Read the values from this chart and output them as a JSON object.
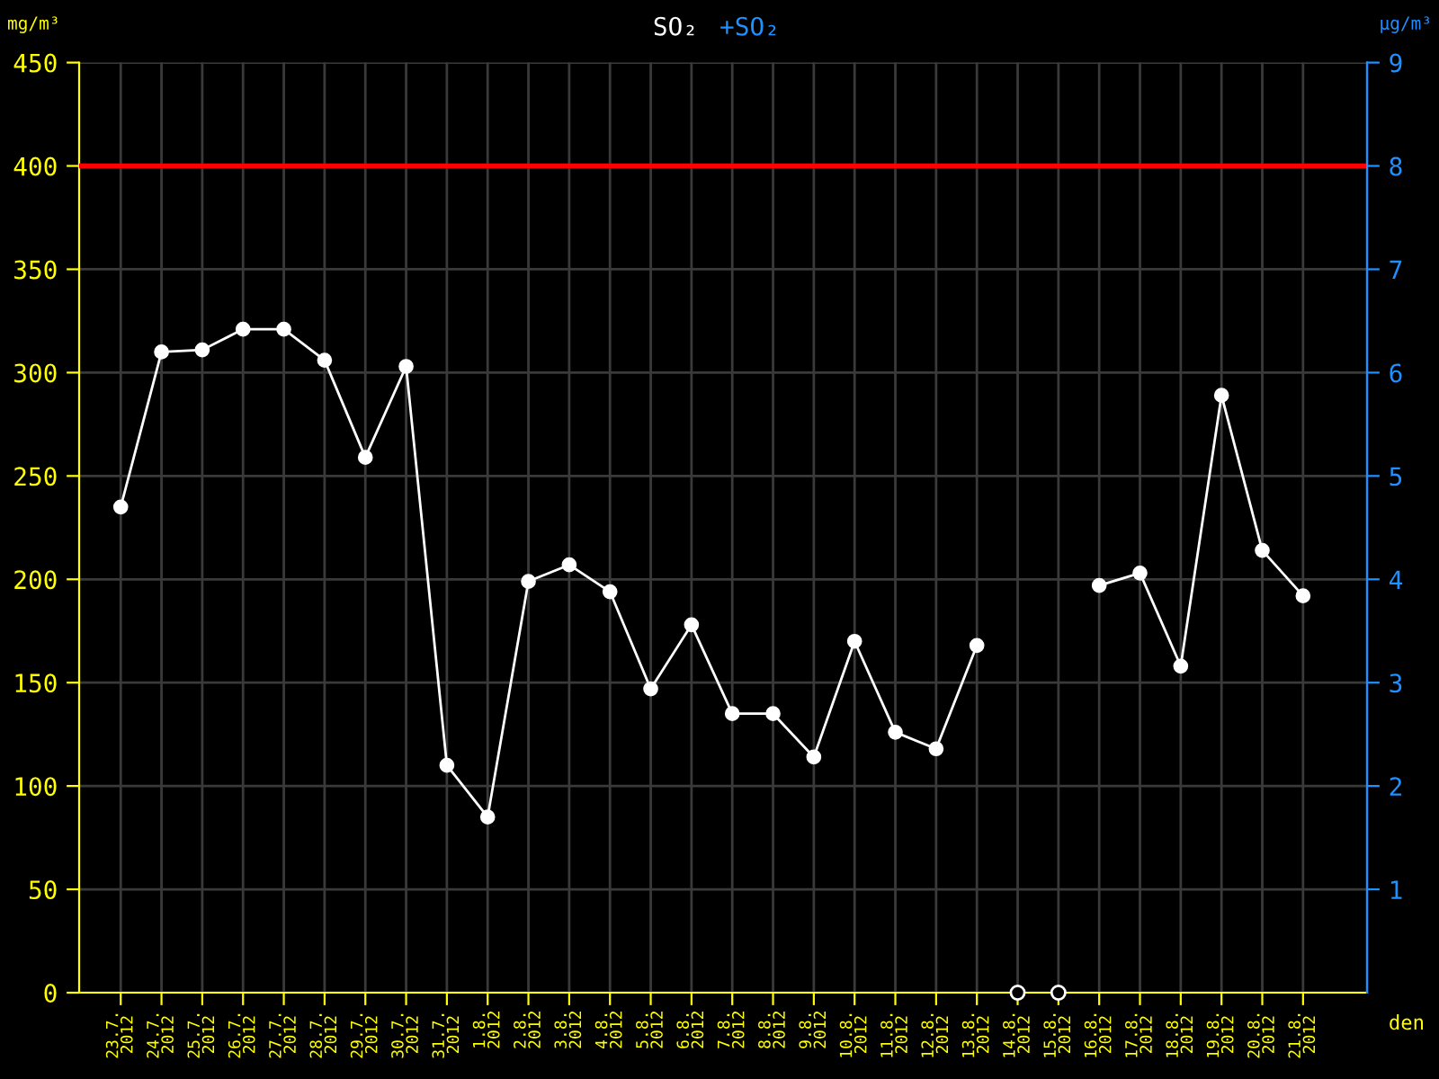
{
  "chart_data": {
    "type": "line",
    "title": "SO₂",
    "subtitle": "+SO₂",
    "ylabel": "mg/m³",
    "y2label": "µg/m³",
    "xlabel": "den",
    "categories": [
      "23.7.\n2012",
      "24.7.\n2012",
      "25.7.\n2012",
      "26.7.\n2012",
      "27.7.\n2012",
      "28.7.\n2012",
      "29.7.\n2012",
      "30.7.\n2012",
      "31.7.\n2012",
      "1.8.\n2012",
      "2.8.\n2012",
      "3.8.\n2012",
      "4.8.\n2012",
      "5.8.\n2012",
      "6.8.\n2012",
      "7.8.\n2012",
      "8.8.\n2012",
      "9.8.\n2012",
      "10.8.\n2012",
      "11.8.\n2012",
      "12.8.\n2012",
      "13.8.\n2012",
      "14.8.\n2012",
      "15.8.\n2012",
      "16.8.\n2012",
      "17.8.\n2012",
      "18.8.\n2012",
      "19.8.\n2012",
      "20.8.\n2012",
      "21.8.\n2012"
    ],
    "series": [
      {
        "color": "#ffffff",
        "marker": "circle",
        "values": [
          235,
          310,
          311,
          321,
          321,
          306,
          259,
          303,
          110,
          85,
          199,
          207,
          194,
          147,
          178,
          135,
          135,
          114,
          170,
          126,
          118,
          168,
          null,
          null,
          197,
          203,
          158,
          289,
          214,
          192
        ]
      },
      {
        "type": "scatter",
        "color": "#ffffff",
        "marker": "circle",
        "values": [
          null,
          null,
          null,
          null,
          null,
          null,
          null,
          null,
          null,
          null,
          null,
          null,
          null,
          null,
          null,
          null,
          null,
          null,
          null,
          null,
          null,
          null,
          0,
          0,
          null,
          null,
          null,
          null,
          null,
          null
        ]
      }
    ],
    "ylim": [
      0,
      450
    ],
    "yticks": [
      0,
      50,
      100,
      150,
      200,
      250,
      300,
      350,
      400,
      450
    ],
    "y2lim": [
      0,
      9
    ],
    "y2ticks": [
      1,
      2,
      3,
      4,
      5,
      6,
      7,
      8,
      9
    ],
    "ref_lines": [
      {
        "axis": "y",
        "value": 400,
        "color": "#ff0000"
      }
    ],
    "grid": true,
    "line_style": "solid"
  }
}
